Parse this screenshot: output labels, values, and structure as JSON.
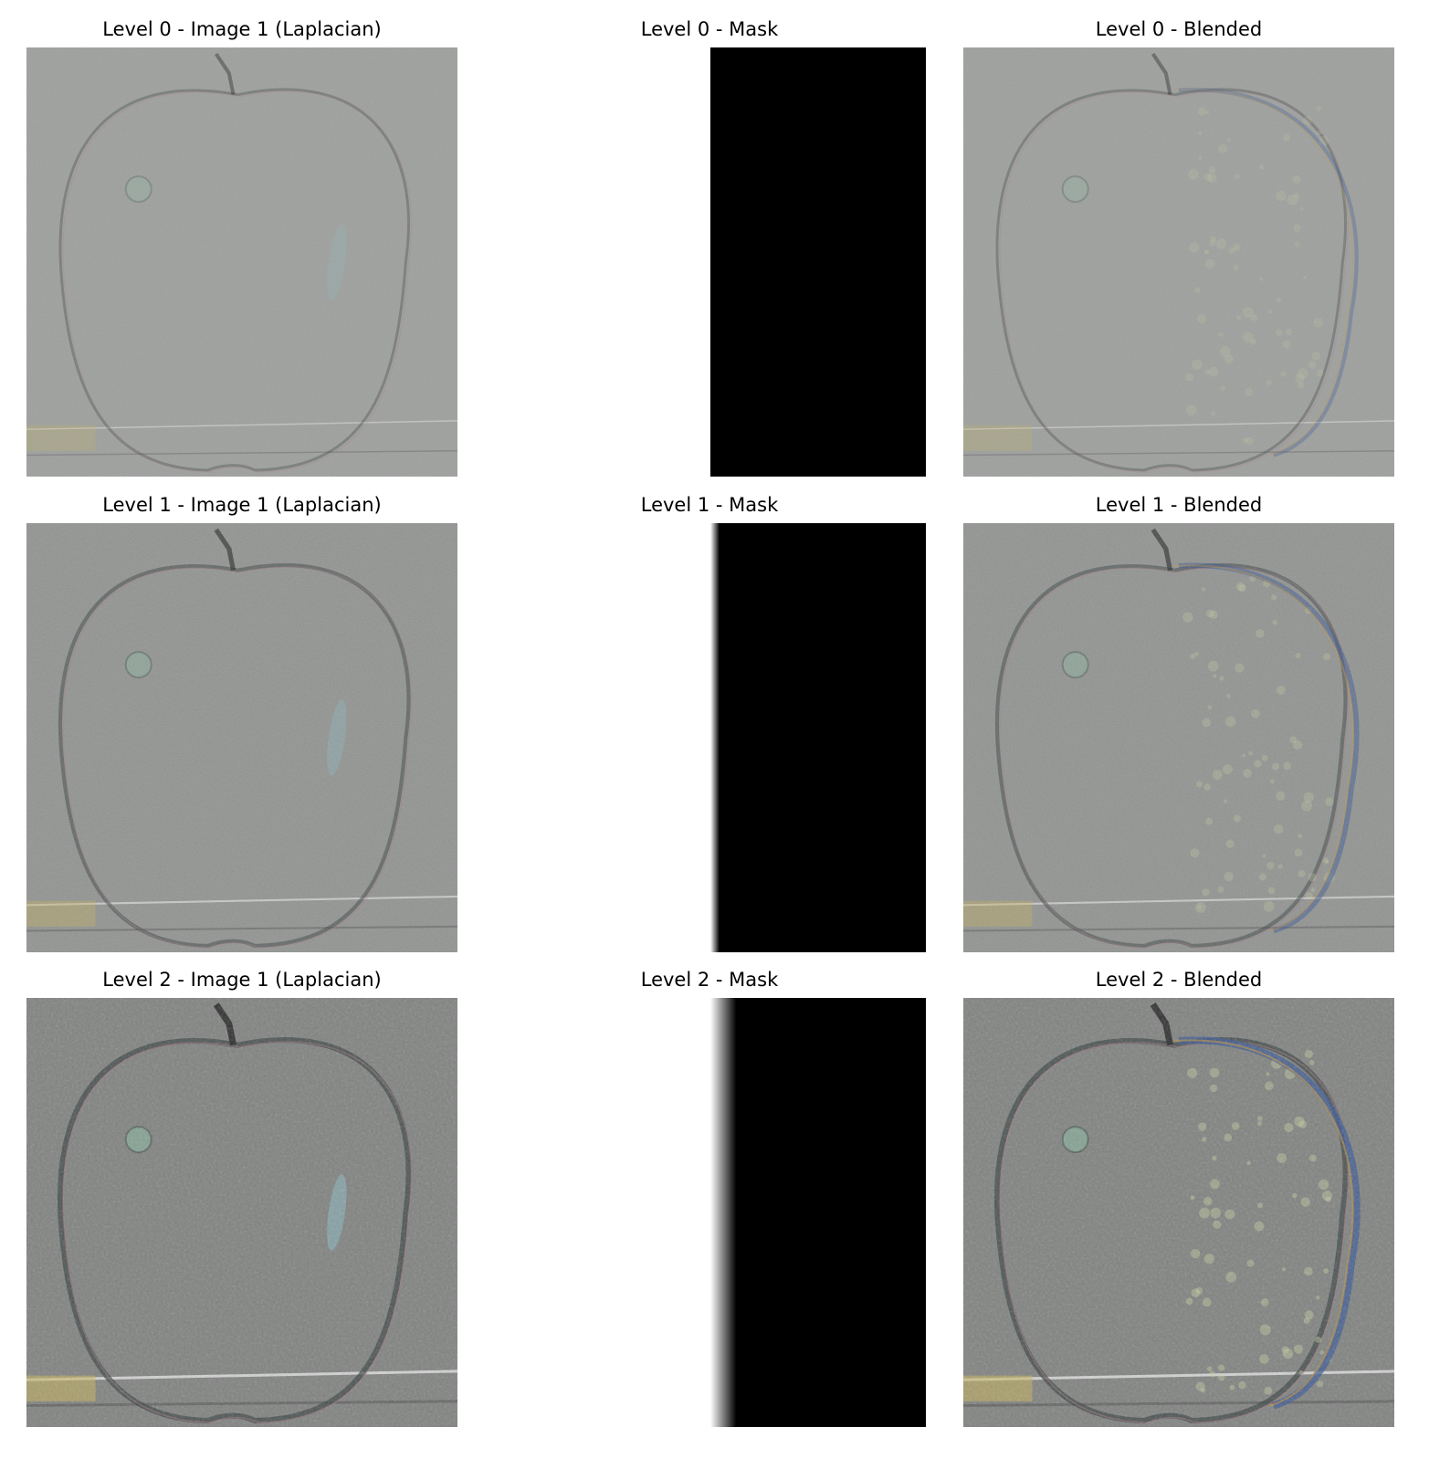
{
  "figure": {
    "rows": [
      {
        "level": 0,
        "image_title": "Level 0 - Image 1 (Laplacian)",
        "mask_title": "Level 0 - Mask",
        "blended_title": "Level 0 - Blended"
      },
      {
        "level": 1,
        "image_title": "Level 1 - Image 1 (Laplacian)",
        "mask_title": "Level 1 - Mask",
        "blended_title": "Level 1 - Blended"
      },
      {
        "level": 2,
        "image_title": "Level 2 - Image 1 (Laplacian)",
        "mask_title": "Level 2 - Mask",
        "blended_title": "Level 2 - Blended"
      }
    ],
    "colors": {
      "background": "#ffffff",
      "laplacian_gray": "#a6a8a6",
      "mask_black": "#000000",
      "mask_white": "#ffffff"
    },
    "mask_edge_softness": [
      0.0,
      0.35,
      1.0
    ],
    "detail_strength": [
      0.25,
      0.55,
      1.0
    ]
  }
}
